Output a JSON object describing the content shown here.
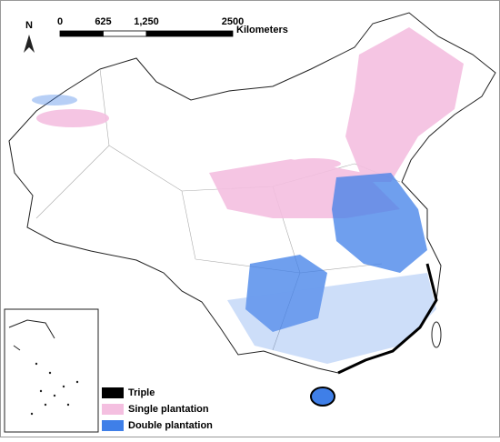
{
  "map": {
    "north_label": "N",
    "scale_bar": {
      "ticks": [
        0,
        625,
        {
          "value": 1250,
          "label": "1,250"
        },
        2500
      ],
      "unit": "Kilometers"
    },
    "legend": [
      {
        "label": "Triple",
        "color": "#000000"
      },
      {
        "label": "Single plantation",
        "color": "#f4bfe0"
      },
      {
        "label": "Double plantation",
        "color": "#3f7fe8"
      }
    ]
  }
}
